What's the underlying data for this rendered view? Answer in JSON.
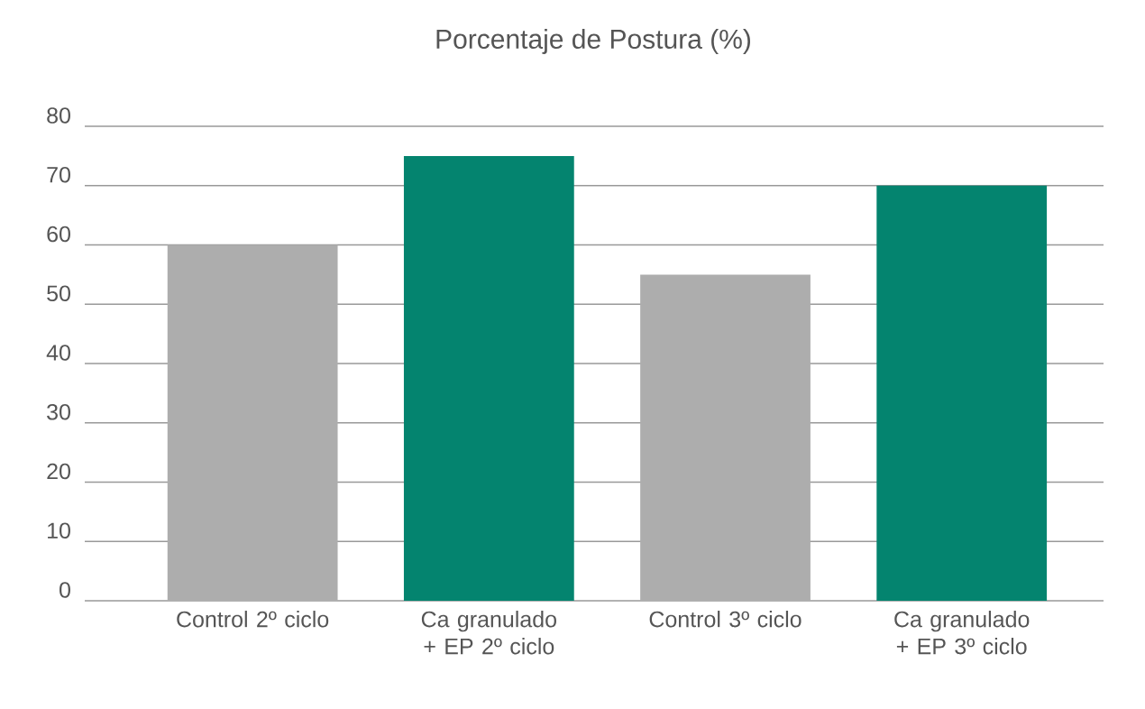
{
  "chart_data": {
    "type": "bar",
    "title": "Porcentaje de Postura (%)",
    "categories": [
      "Control 2º ciclo",
      "Ca granulado + EP 2º ciclo",
      "Control 3º ciclo",
      "Ca granulado + EP 3º ciclo"
    ],
    "values": [
      60,
      75,
      55,
      70
    ],
    "colors": [
      "#adadad",
      "#04846f",
      "#adadad",
      "#04846f"
    ],
    "ylim": [
      0,
      80
    ],
    "yticks": [
      0,
      10,
      20,
      30,
      40,
      50,
      60,
      70,
      80
    ],
    "grid": "y"
  }
}
